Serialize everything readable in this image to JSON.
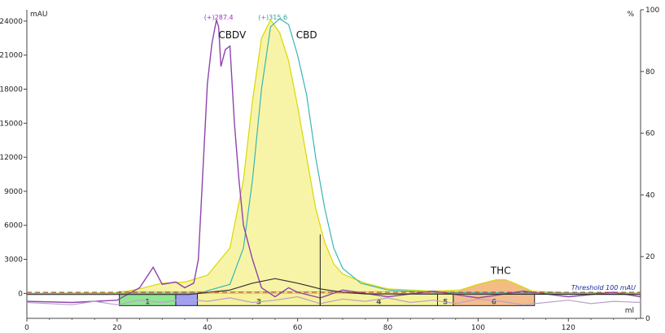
{
  "chart_data": {
    "type": "line",
    "x_unit": "ml",
    "y_left_unit": "mAU",
    "y_right_unit": "%",
    "xlim": [
      0,
      136
    ],
    "ylim_left": [
      -2200,
      25000
    ],
    "ylim_right": [
      0,
      100
    ],
    "x_ticks": [
      0,
      20,
      40,
      60,
      80,
      100,
      120
    ],
    "y_left_ticks": [
      0,
      3000,
      6000,
      9000,
      12000,
      15000,
      18000,
      21000,
      24000
    ],
    "y_right_ticks": [
      0,
      20,
      40,
      60,
      80,
      100
    ],
    "threshold": {
      "label": "Threshold 100 mAU",
      "value": 100
    },
    "peak_labels": [
      {
        "text": "CBDV",
        "x": 45.5,
        "y": 22500
      },
      {
        "text": "CBD",
        "x": 62,
        "y": 22500
      },
      {
        "text": "THC",
        "x": 105,
        "y": 1700
      }
    ],
    "max_markers": [
      {
        "text": "(+)287.4",
        "x": 42.5,
        "y": 24500,
        "color": "#9b30c0"
      },
      {
        "text": "(+)315.6",
        "x": 54.5,
        "y": 24500,
        "color": "#2aa198"
      }
    ],
    "fractions": [
      {
        "label": "1",
        "x_start": 20.5,
        "x_end": 33,
        "color": "#7fe07f"
      },
      {
        "label": "",
        "x_start": 33,
        "x_end": 37.8,
        "color": "#8f8ff0"
      },
      {
        "label": "3",
        "x_start": 37.8,
        "x_end": 65,
        "color": "#f3f08a"
      },
      {
        "label": "4",
        "x_start": 65,
        "x_end": 91,
        "color": "#f3f08a"
      },
      {
        "label": "5",
        "x_start": 91,
        "x_end": 94.5,
        "color": "#f3f08a"
      },
      {
        "label": "6",
        "x_start": 94.5,
        "x_end": 112.5,
        "color": "#f2b27c"
      }
    ],
    "series": [
      {
        "color": "#d8d800",
        "x": [
          0,
          20,
          25,
          30,
          35,
          40,
          45,
          48,
          50,
          52,
          54,
          56,
          58,
          60,
          62,
          64,
          66,
          68,
          70,
          75,
          80,
          90,
          96,
          100,
          104,
          106,
          108,
          112,
          120,
          136
        ],
        "y": [
          0,
          50,
          400,
          900,
          1000,
          1600,
          4000,
          10000,
          17000,
          22500,
          24100,
          23000,
          20500,
          16500,
          12000,
          7500,
          4500,
          2600,
          1700,
          900,
          400,
          200,
          300,
          800,
          1200,
          1200,
          900,
          200,
          60,
          40
        ]
      },
      {
        "color": "#3ab5b5",
        "x": [
          0,
          38,
          45,
          48,
          50,
          52,
          54,
          56,
          58,
          60,
          62,
          64,
          66,
          68,
          70,
          74,
          80,
          90,
          100,
          110,
          136
        ],
        "y": [
          0,
          0,
          800,
          4000,
          10000,
          18000,
          23500,
          24200,
          23700,
          21000,
          17500,
          12000,
          7500,
          4000,
          2200,
          900,
          300,
          100,
          50,
          30,
          0
        ]
      },
      {
        "color": "#8e44ad",
        "x": [
          0,
          10,
          20,
          25,
          28,
          30,
          33,
          35,
          37,
          38,
          40,
          41,
          42,
          42.5,
          43,
          44,
          45,
          46,
          47,
          48,
          50,
          52,
          55,
          58,
          60,
          65,
          70,
          80,
          90,
          100,
          110,
          120,
          130,
          136
        ],
        "y": [
          -700,
          -800,
          -600,
          500,
          2300,
          800,
          1000,
          500,
          900,
          3000,
          18500,
          22000,
          24100,
          23500,
          20000,
          21500,
          21800,
          15000,
          10000,
          6000,
          3000,
          500,
          -300,
          500,
          100,
          -400,
          300,
          -300,
          200,
          -400,
          200,
          -300,
          100,
          -300
        ]
      },
      {
        "color": "#333333",
        "x": [
          0,
          36,
          45,
          50,
          55,
          60,
          65,
          70,
          75,
          136
        ],
        "y": [
          -100,
          -100,
          300,
          900,
          1300,
          900,
          400,
          100,
          -50,
          -100
        ]
      },
      {
        "color": "#b9a2c9",
        "x": [
          0,
          10,
          15,
          20,
          25,
          30,
          35,
          40,
          45,
          50,
          55,
          60,
          65,
          70,
          75,
          80,
          85,
          90,
          95,
          100,
          105,
          110,
          115,
          120,
          125,
          130,
          136
        ],
        "y": [
          -800,
          -1000,
          -700,
          -1000,
          -600,
          -800,
          -500,
          -700,
          -400,
          -800,
          -600,
          -300,
          -900,
          -500,
          -700,
          -400,
          -800,
          -600,
          -900,
          -500,
          -700,
          -1000,
          -800,
          -600,
          -900,
          -700,
          -800
        ]
      }
    ]
  }
}
